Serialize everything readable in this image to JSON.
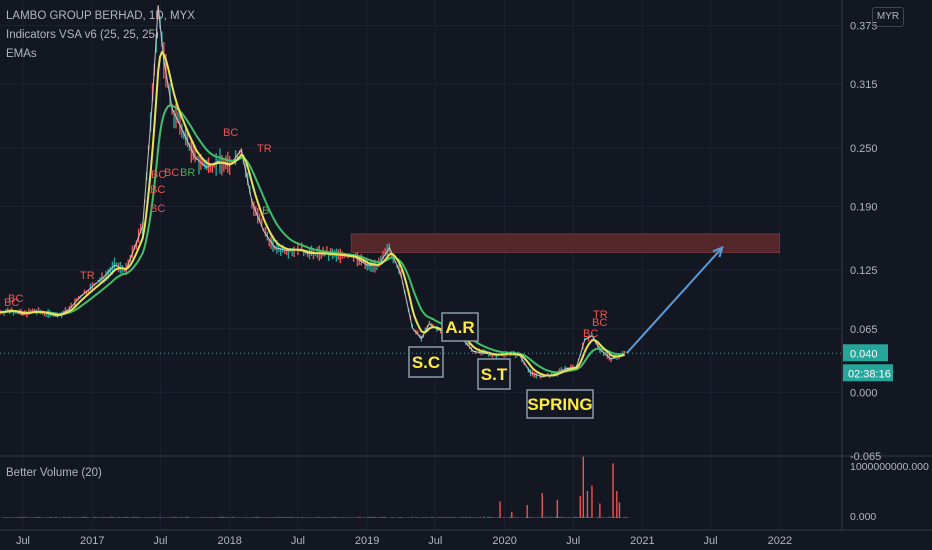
{
  "header": {
    "title": "LAMBO GROUP BERHAD, 1D, MYX",
    "indicator": "Indicators VSA v6 (25, 25, 25)",
    "emas": "EMAs",
    "currency": "MYR"
  },
  "price_scale": {
    "ticks": [
      "0.375",
      "0.315",
      "0.250",
      "0.190",
      "0.125",
      "0.065",
      "0.000",
      "-0.065"
    ],
    "last_price": "0.040",
    "countdown": "02:38:16"
  },
  "volume_pane": {
    "title": "Better Volume (20)",
    "ticks": [
      "1000000000.000",
      "0.000"
    ]
  },
  "time_axis": {
    "ticks": [
      "Jul",
      "2017",
      "Jul",
      "2018",
      "Jul",
      "2019",
      "Jul",
      "2020",
      "Jul",
      "2021",
      "Jul",
      "2022"
    ]
  },
  "annotations": {
    "sc": "S.C",
    "ar": "A.R",
    "st": "S.T",
    "spring": "SPRING",
    "vsa_labels": [
      "BC",
      "TR",
      "BC",
      "BC",
      "BC",
      "BC",
      "BR",
      "BC",
      "TR",
      "B",
      "TR",
      "BC",
      "BC",
      "BC"
    ]
  },
  "colors": {
    "background": "#131722",
    "price_line": "#d1d4dc",
    "ema_fast": "#e8e355",
    "ema_slow": "#3fbf6a",
    "resistance_zone": "#5c2a2c",
    "arrow": "#5b9bd5",
    "label_red": "#ef5350",
    "label_green": "#4caf50",
    "annotation_text": "#ffeb3b",
    "last_price_badge": "#26a69a"
  },
  "chart_data": {
    "type": "line",
    "title": "LAMBO GROUP BERHAD, 1D, MYX",
    "y_range": [
      -0.065,
      0.4
    ],
    "x_range": [
      "2016-05-01",
      "2022-06-15"
    ],
    "series": [
      {
        "values": [
          [
            "2016-05-01",
            0.082
          ],
          [
            "2016-06-01",
            0.084
          ],
          [
            "2016-07-01",
            0.08
          ],
          [
            "2016-08-01",
            0.083
          ],
          [
            "2016-09-01",
            0.081
          ],
          [
            "2016-10-01",
            0.078
          ],
          [
            "2016-11-01",
            0.085
          ],
          [
            "2016-12-01",
            0.098
          ],
          [
            "2017-01-01",
            0.108
          ],
          [
            "2017-02-01",
            0.118
          ],
          [
            "2017-03-01",
            0.13
          ],
          [
            "2017-04-01",
            0.125
          ],
          [
            "2017-05-15",
            0.17
          ],
          [
            "2017-06-10",
            0.3
          ],
          [
            "2017-06-25",
            0.395
          ],
          [
            "2017-07-10",
            0.34
          ],
          [
            "2017-08-01",
            0.29
          ],
          [
            "2017-09-01",
            0.265
          ],
          [
            "2017-10-01",
            0.24
          ],
          [
            "2017-11-01",
            0.23
          ],
          [
            "2017-12-01",
            0.236
          ],
          [
            "2018-01-01",
            0.232
          ],
          [
            "2018-02-01",
            0.248
          ],
          [
            "2018-03-01",
            0.195
          ],
          [
            "2018-04-01",
            0.165
          ],
          [
            "2018-05-01",
            0.148
          ],
          [
            "2018-06-01",
            0.145
          ],
          [
            "2018-07-01",
            0.146
          ],
          [
            "2018-08-01",
            0.142
          ],
          [
            "2018-09-01",
            0.142
          ],
          [
            "2018-10-01",
            0.141
          ],
          [
            "2018-11-01",
            0.14
          ],
          [
            "2018-12-01",
            0.138
          ],
          [
            "2019-01-01",
            0.13
          ],
          [
            "2019-02-01",
            0.13
          ],
          [
            "2019-03-01",
            0.148
          ],
          [
            "2019-04-01",
            0.12
          ],
          [
            "2019-05-01",
            0.066
          ],
          [
            "2019-05-25",
            0.055
          ],
          [
            "2019-06-15",
            0.07
          ],
          [
            "2019-07-10",
            0.064
          ],
          [
            "2019-08-10",
            0.06
          ],
          [
            "2019-09-10",
            0.055
          ],
          [
            "2019-10-10",
            0.042
          ],
          [
            "2019-11-10",
            0.04
          ],
          [
            "2019-12-10",
            0.038
          ],
          [
            "2020-01-10",
            0.04
          ],
          [
            "2020-02-10",
            0.038
          ],
          [
            "2020-03-10",
            0.02
          ],
          [
            "2020-04-10",
            0.016
          ],
          [
            "2020-05-10",
            0.018
          ],
          [
            "2020-06-10",
            0.024
          ],
          [
            "2020-07-10",
            0.026
          ],
          [
            "2020-08-01",
            0.054
          ],
          [
            "2020-08-20",
            0.058
          ],
          [
            "2020-09-10",
            0.044
          ],
          [
            "2020-10-10",
            0.034
          ],
          [
            "2020-11-15",
            0.04
          ]
        ]
      }
    ],
    "annotations": [
      {
        "text": "S.C",
        "x": "2019-06-01",
        "y": 0.042
      },
      {
        "text": "A.R",
        "x": "2019-07-10",
        "y": 0.072
      },
      {
        "text": "S.T",
        "x": "2019-11-15",
        "y": 0.025
      },
      {
        "text": "SPRING",
        "x": "2020-05-10",
        "y": -0.013
      }
    ],
    "resistance_zone": {
      "x0": "2018-11-20",
      "x1": "2021-12-31",
      "y0": 0.143,
      "y1": 0.162
    },
    "projection_arrow": {
      "x0": "2020-11-20",
      "y0": 0.04,
      "x1": "2021-08-01",
      "y1": 0.148
    },
    "volume": {
      "series_name": "Better Volume (20)",
      "ylim": [
        0,
        1000000000
      ],
      "spikes": [
        [
          "2019-12-20",
          320000000
        ],
        [
          "2020-01-20",
          120000000
        ],
        [
          "2020-03-01",
          250000000
        ],
        [
          "2020-04-10",
          480000000
        ],
        [
          "2020-05-20",
          350000000
        ],
        [
          "2020-07-20",
          420000000
        ],
        [
          "2020-07-28",
          1180000000
        ],
        [
          "2020-08-08",
          520000000
        ],
        [
          "2020-08-20",
          620000000
        ],
        [
          "2020-09-10",
          280000000
        ],
        [
          "2020-10-15",
          1050000000
        ],
        [
          "2020-10-25",
          520000000
        ],
        [
          "2020-11-01",
          300000000
        ]
      ]
    }
  }
}
